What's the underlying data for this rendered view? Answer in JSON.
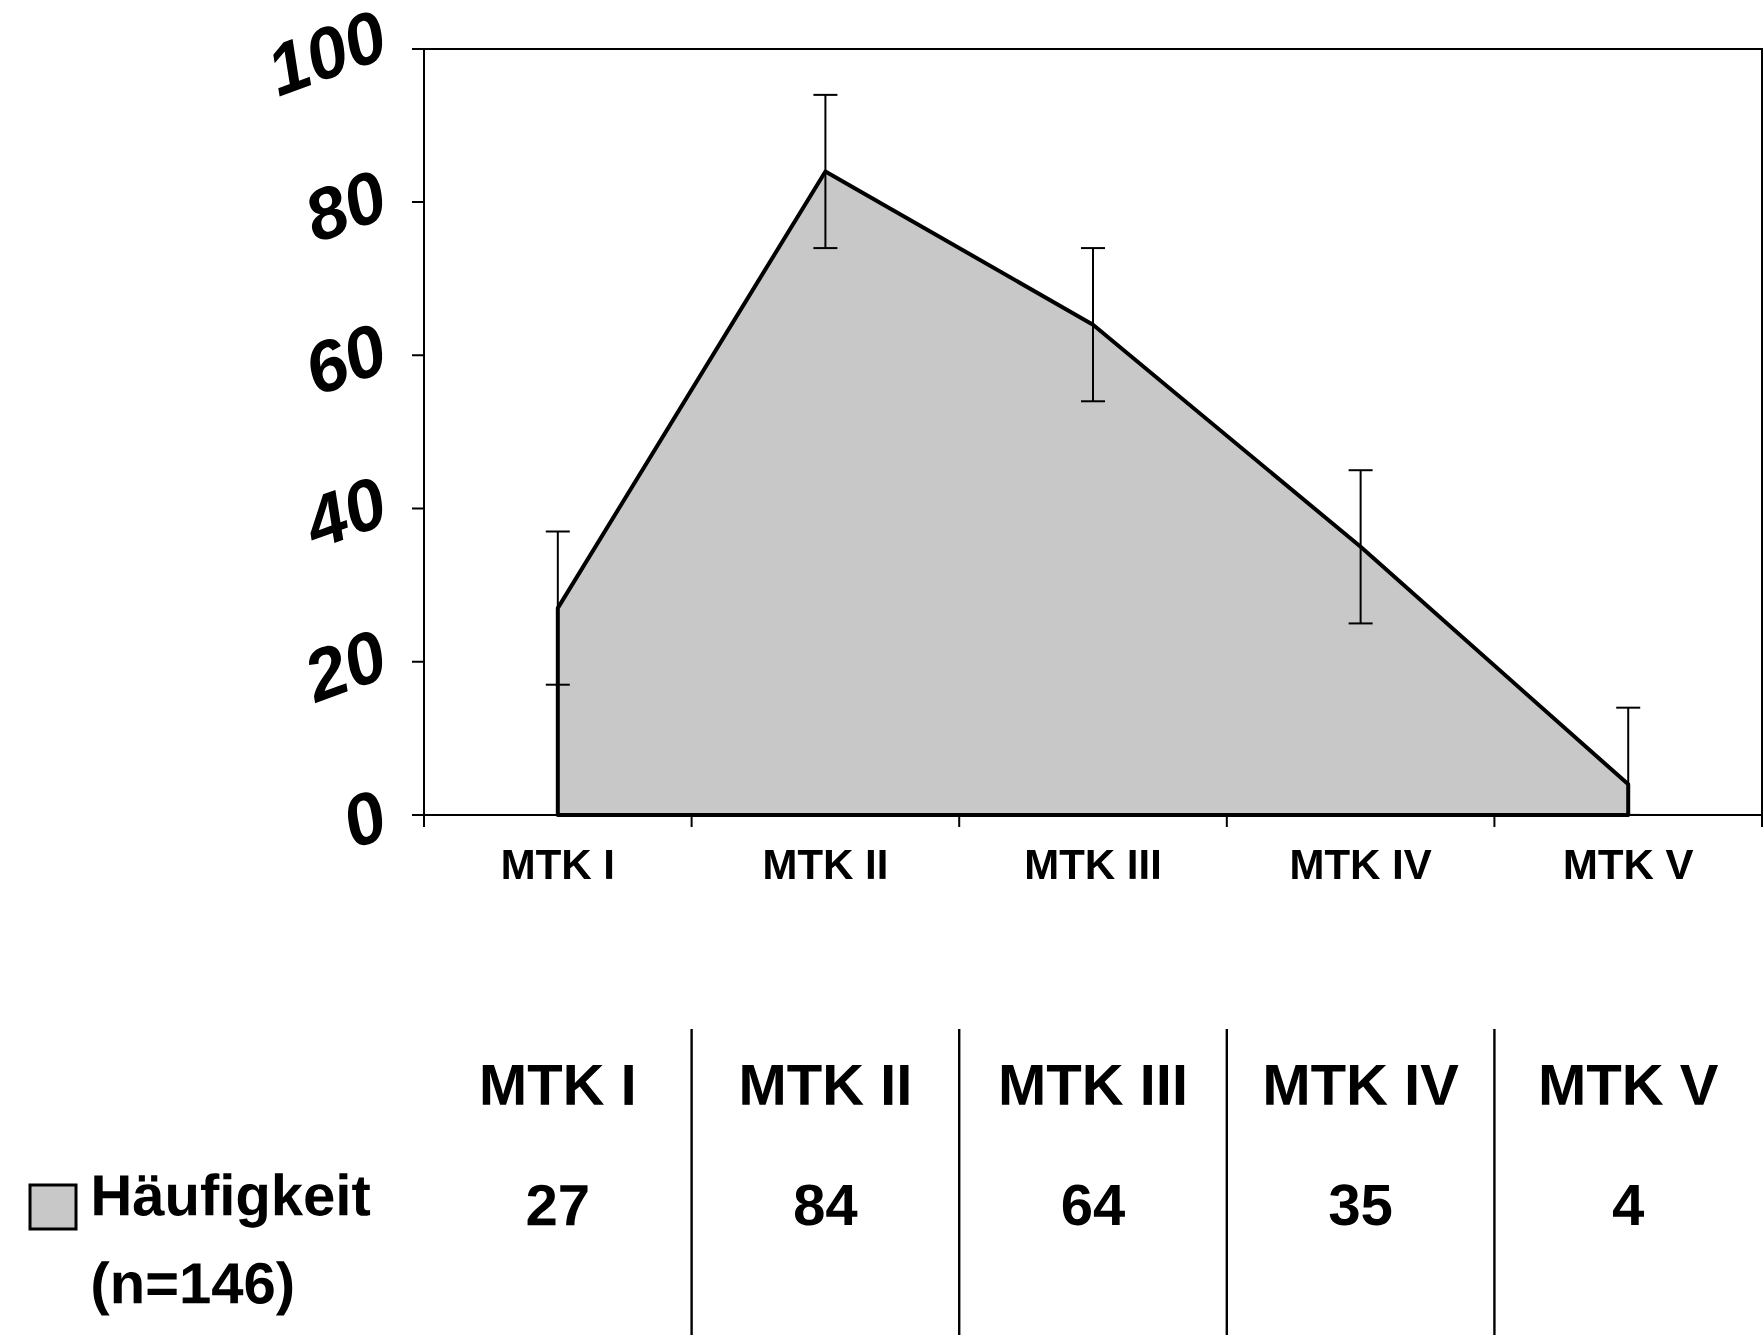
{
  "chart_data": {
    "type": "area",
    "categories": [
      "MTK I",
      "MTK II",
      "MTK III",
      "MTK IV",
      "MTK V"
    ],
    "series": [
      {
        "name": "Häufigkeit (n=146)",
        "color": "#c8c8c8",
        "values": [
          27,
          84,
          64,
          35,
          4
        ],
        "value_labels": [
          "27",
          "84",
          "64",
          "35",
          "4"
        ],
        "errors": [
          10,
          10,
          10,
          10,
          [
            0,
            14
          ]
        ]
      }
    ],
    "ylim": [
      0,
      100
    ],
    "yticks": [
      0,
      20,
      40,
      60,
      80,
      100
    ],
    "grid": false,
    "legend": "bottom"
  }
}
